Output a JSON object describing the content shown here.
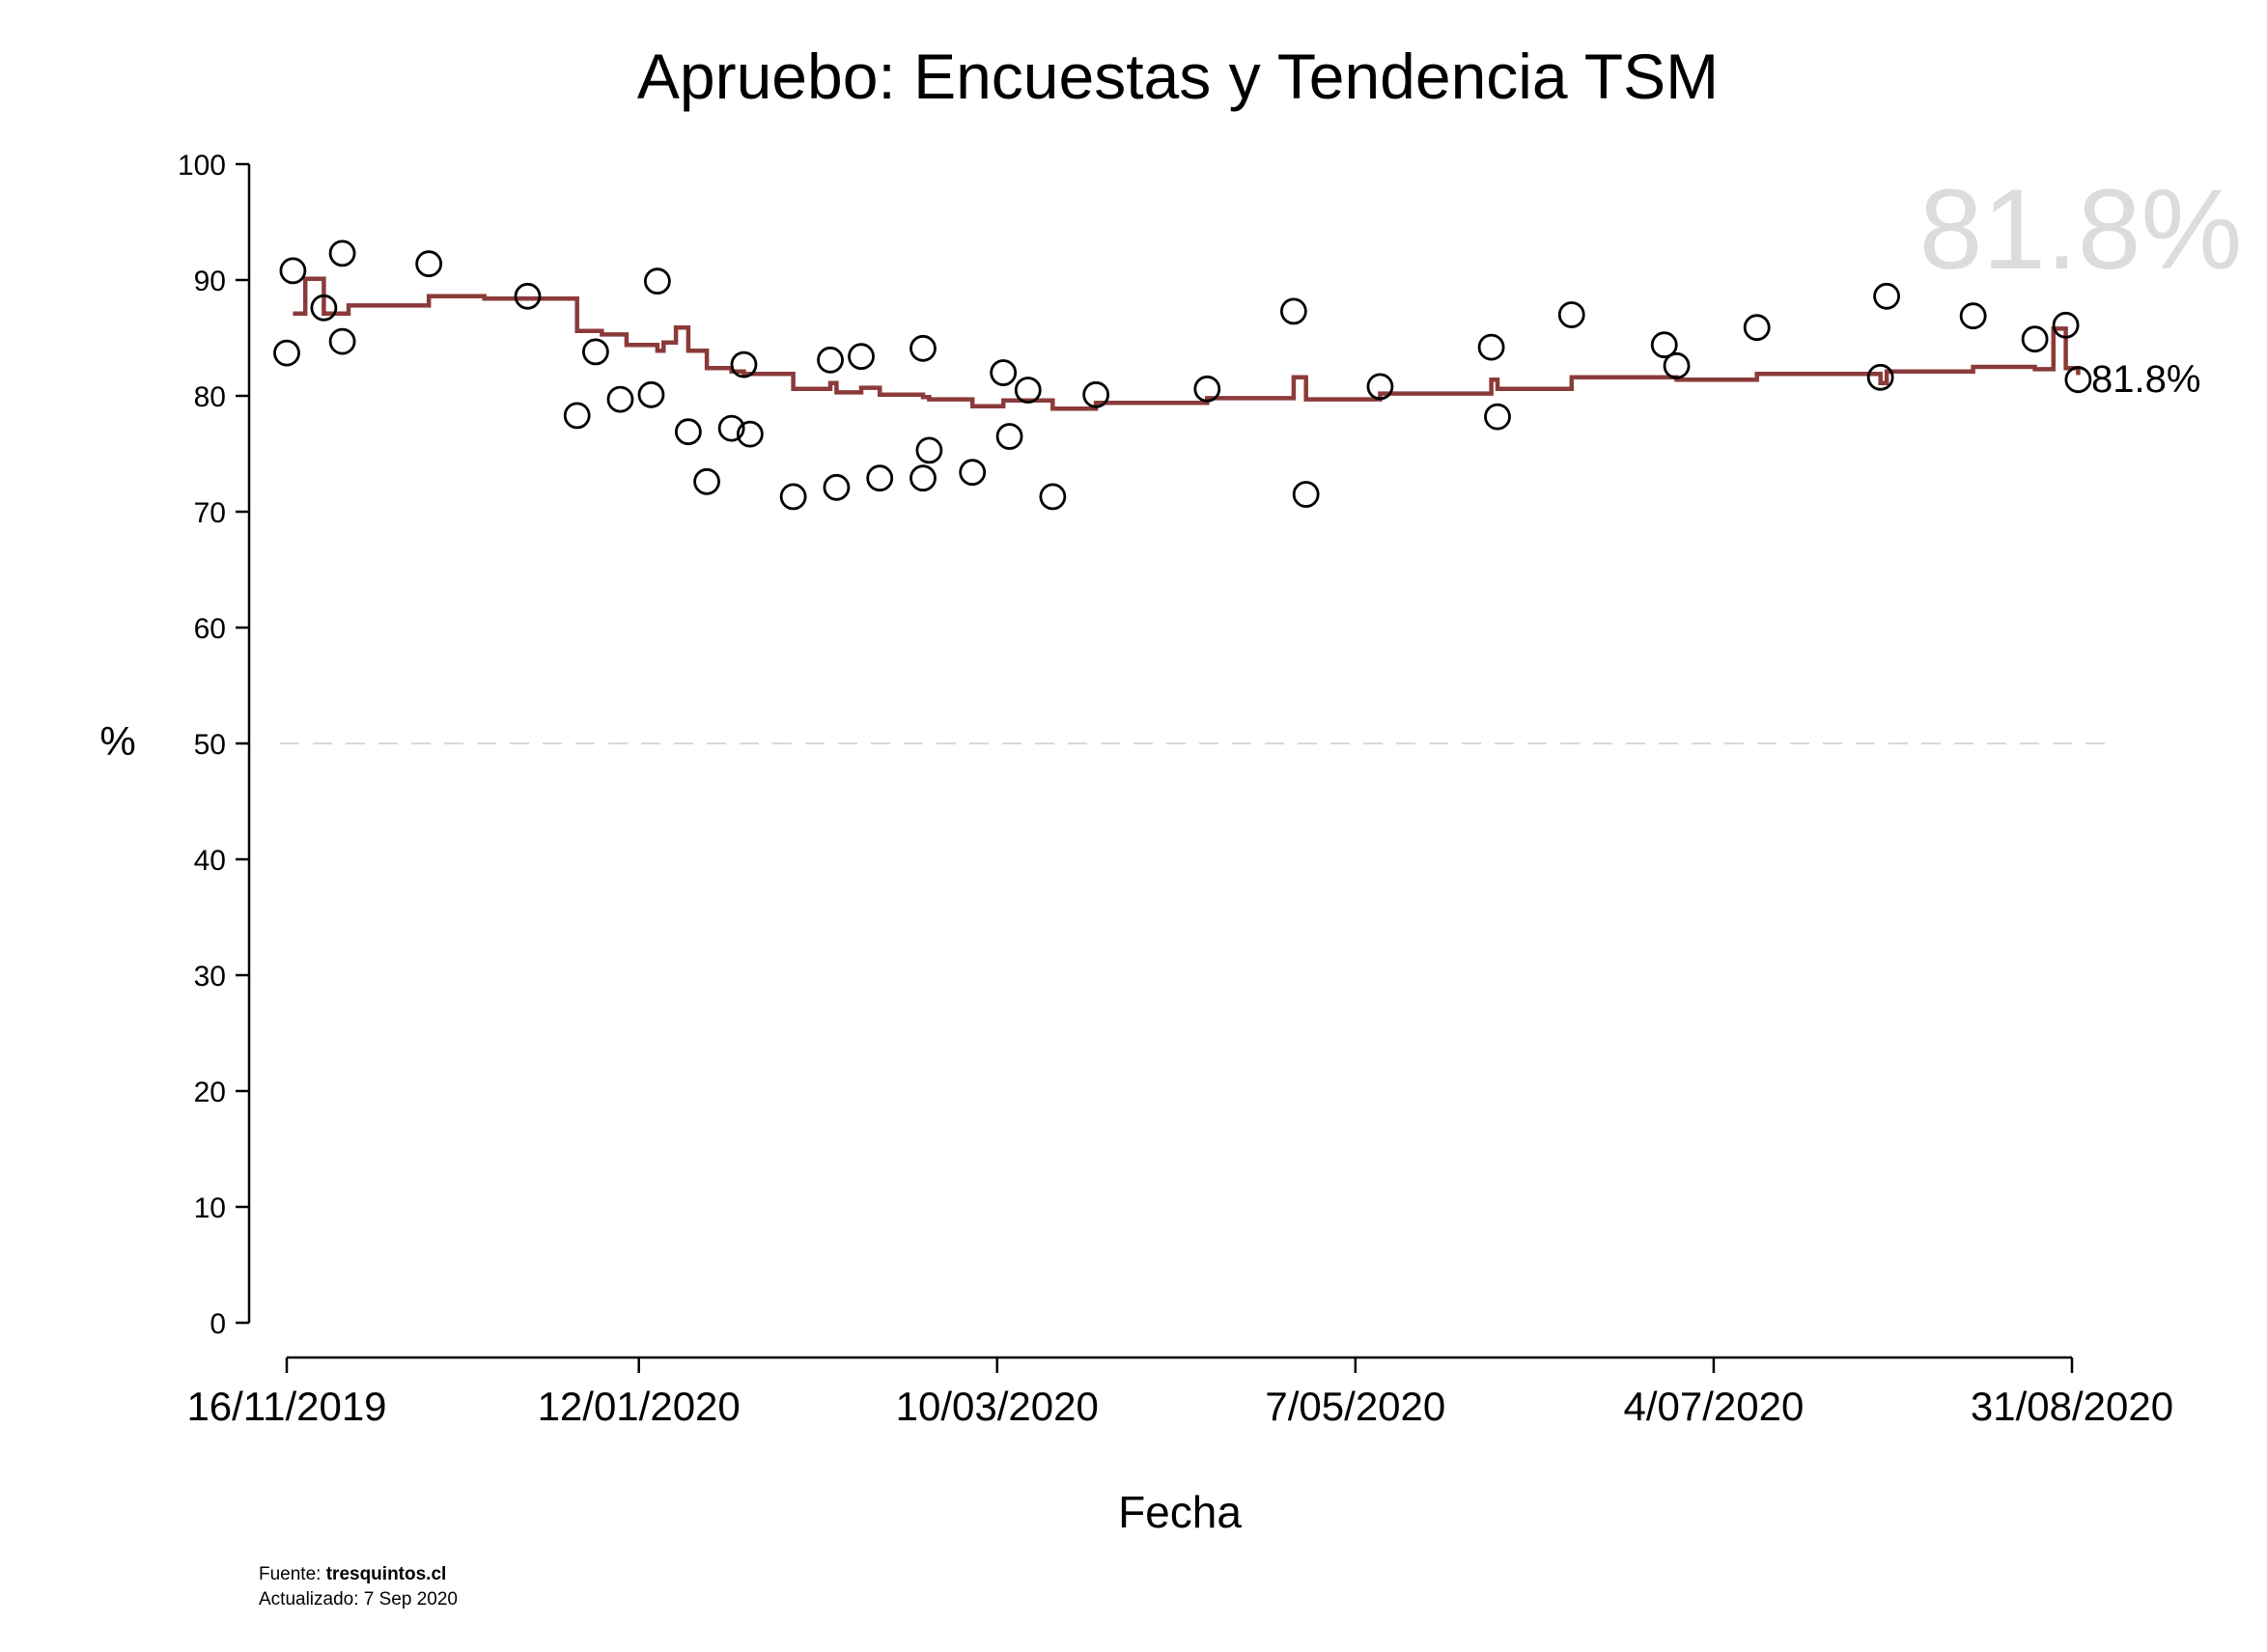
{
  "chart_data": {
    "type": "line",
    "title": "Apruebo: Encuestas y Tendencia TSM",
    "xlabel": "Fecha",
    "ylabel": "%",
    "ylim": [
      0,
      100
    ],
    "yticks": [
      0,
      10,
      20,
      30,
      40,
      50,
      60,
      70,
      80,
      90,
      100
    ],
    "xlim": [
      "2019-11-16",
      "2020-08-31"
    ],
    "xtick_labels": [
      "16/11/2019",
      "12/01/2020",
      "10/03/2020",
      "7/05/2020",
      "4/07/2020",
      "31/08/2020"
    ],
    "xtick_values": [
      "2019-11-16",
      "2020-01-12",
      "2020-03-10",
      "2020-05-07",
      "2020-07-04",
      "2020-08-31"
    ],
    "reference_line": {
      "y": 50,
      "style": "dashed",
      "color": "#d9d9d9"
    },
    "latest_value_label": "81.8%",
    "colors": {
      "trend": "#8b3a3a",
      "points": "#000000"
    },
    "series": [
      {
        "type": "scatter",
        "marker": "open-circle",
        "points": [
          {
            "x": "2019-11-16",
            "y": 83.7
          },
          {
            "x": "2019-11-17",
            "y": 90.8
          },
          {
            "x": "2019-11-22",
            "y": 87.6
          },
          {
            "x": "2019-11-25",
            "y": 92.3
          },
          {
            "x": "2019-11-25",
            "y": 84.7
          },
          {
            "x": "2019-12-09",
            "y": 91.4
          },
          {
            "x": "2019-12-25",
            "y": 88.6
          },
          {
            "x": "2020-01-02",
            "y": 78.3
          },
          {
            "x": "2020-01-05",
            "y": 83.8
          },
          {
            "x": "2020-01-09",
            "y": 79.7
          },
          {
            "x": "2020-01-14",
            "y": 80.1
          },
          {
            "x": "2020-01-15",
            "y": 89.9
          },
          {
            "x": "2020-01-20",
            "y": 76.9
          },
          {
            "x": "2020-01-23",
            "y": 72.6
          },
          {
            "x": "2020-01-27",
            "y": 77.2
          },
          {
            "x": "2020-01-29",
            "y": 82.7
          },
          {
            "x": "2020-01-30",
            "y": 76.7
          },
          {
            "x": "2020-02-06",
            "y": 71.3
          },
          {
            "x": "2020-02-12",
            "y": 83.1
          },
          {
            "x": "2020-02-13",
            "y": 72.1
          },
          {
            "x": "2020-02-17",
            "y": 83.4
          },
          {
            "x": "2020-02-20",
            "y": 72.9
          },
          {
            "x": "2020-02-27",
            "y": 84.1
          },
          {
            "x": "2020-02-27",
            "y": 72.9
          },
          {
            "x": "2020-02-28",
            "y": 75.3
          },
          {
            "x": "2020-03-06",
            "y": 73.4
          },
          {
            "x": "2020-03-11",
            "y": 82.0
          },
          {
            "x": "2020-03-12",
            "y": 76.5
          },
          {
            "x": "2020-03-15",
            "y": 80.5
          },
          {
            "x": "2020-03-19",
            "y": 71.3
          },
          {
            "x": "2020-03-26",
            "y": 80.1
          },
          {
            "x": "2020-04-13",
            "y": 80.6
          },
          {
            "x": "2020-04-27",
            "y": 87.3
          },
          {
            "x": "2020-04-29",
            "y": 71.5
          },
          {
            "x": "2020-05-11",
            "y": 80.8
          },
          {
            "x": "2020-05-29",
            "y": 84.2
          },
          {
            "x": "2020-05-30",
            "y": 78.2
          },
          {
            "x": "2020-06-11",
            "y": 87.0
          },
          {
            "x": "2020-06-26",
            "y": 84.4
          },
          {
            "x": "2020-06-28",
            "y": 82.6
          },
          {
            "x": "2020-07-11",
            "y": 85.9
          },
          {
            "x": "2020-07-31",
            "y": 81.6
          },
          {
            "x": "2020-08-01",
            "y": 88.6
          },
          {
            "x": "2020-08-15",
            "y": 86.9
          },
          {
            "x": "2020-08-25",
            "y": 84.9
          },
          {
            "x": "2020-08-30",
            "y": 86.1
          },
          {
            "x": "2020-09-01",
            "y": 81.4
          }
        ]
      },
      {
        "type": "line",
        "interpolation": "step",
        "steps": [
          {
            "x": "2019-11-17",
            "y": 87.1
          },
          {
            "x": "2019-11-19",
            "y": 90.1
          },
          {
            "x": "2019-11-22",
            "y": 87.1
          },
          {
            "x": "2019-11-26",
            "y": 87.8
          },
          {
            "x": "2019-12-09",
            "y": 88.6
          },
          {
            "x": "2019-12-18",
            "y": 88.4
          },
          {
            "x": "2020-01-02",
            "y": 85.6
          },
          {
            "x": "2020-01-06",
            "y": 85.3
          },
          {
            "x": "2020-01-10",
            "y": 84.4
          },
          {
            "x": "2020-01-15",
            "y": 83.9
          },
          {
            "x": "2020-01-16",
            "y": 84.6
          },
          {
            "x": "2020-01-18",
            "y": 85.9
          },
          {
            "x": "2020-01-20",
            "y": 83.9
          },
          {
            "x": "2020-01-23",
            "y": 82.4
          },
          {
            "x": "2020-01-27",
            "y": 82.1
          },
          {
            "x": "2020-01-29",
            "y": 81.9
          },
          {
            "x": "2020-02-06",
            "y": 80.6
          },
          {
            "x": "2020-02-12",
            "y": 81.1
          },
          {
            "x": "2020-02-13",
            "y": 80.3
          },
          {
            "x": "2020-02-17",
            "y": 80.7
          },
          {
            "x": "2020-02-20",
            "y": 80.1
          },
          {
            "x": "2020-02-27",
            "y": 79.9
          },
          {
            "x": "2020-02-28",
            "y": 79.7
          },
          {
            "x": "2020-03-06",
            "y": 79.1
          },
          {
            "x": "2020-03-11",
            "y": 79.6
          },
          {
            "x": "2020-03-19",
            "y": 78.9
          },
          {
            "x": "2020-03-26",
            "y": 79.4
          },
          {
            "x": "2020-04-13",
            "y": 79.8
          },
          {
            "x": "2020-04-27",
            "y": 81.6
          },
          {
            "x": "2020-04-29",
            "y": 79.7
          },
          {
            "x": "2020-05-11",
            "y": 80.2
          },
          {
            "x": "2020-05-29",
            "y": 81.4
          },
          {
            "x": "2020-05-30",
            "y": 80.6
          },
          {
            "x": "2020-06-11",
            "y": 81.6
          },
          {
            "x": "2020-06-28",
            "y": 81.4
          },
          {
            "x": "2020-07-11",
            "y": 81.9
          },
          {
            "x": "2020-07-31",
            "y": 81.1
          },
          {
            "x": "2020-08-01",
            "y": 82.1
          },
          {
            "x": "2020-08-15",
            "y": 82.5
          },
          {
            "x": "2020-08-25",
            "y": 82.3
          },
          {
            "x": "2020-08-28",
            "y": 85.8
          },
          {
            "x": "2020-08-30",
            "y": 82.4
          },
          {
            "x": "2020-09-01",
            "y": 81.8
          }
        ]
      }
    ]
  },
  "footer": {
    "source_prefix": "Fuente: ",
    "source_name": "tresquintos.cl",
    "updated": "Actualizado: 7 Sep 2020"
  }
}
